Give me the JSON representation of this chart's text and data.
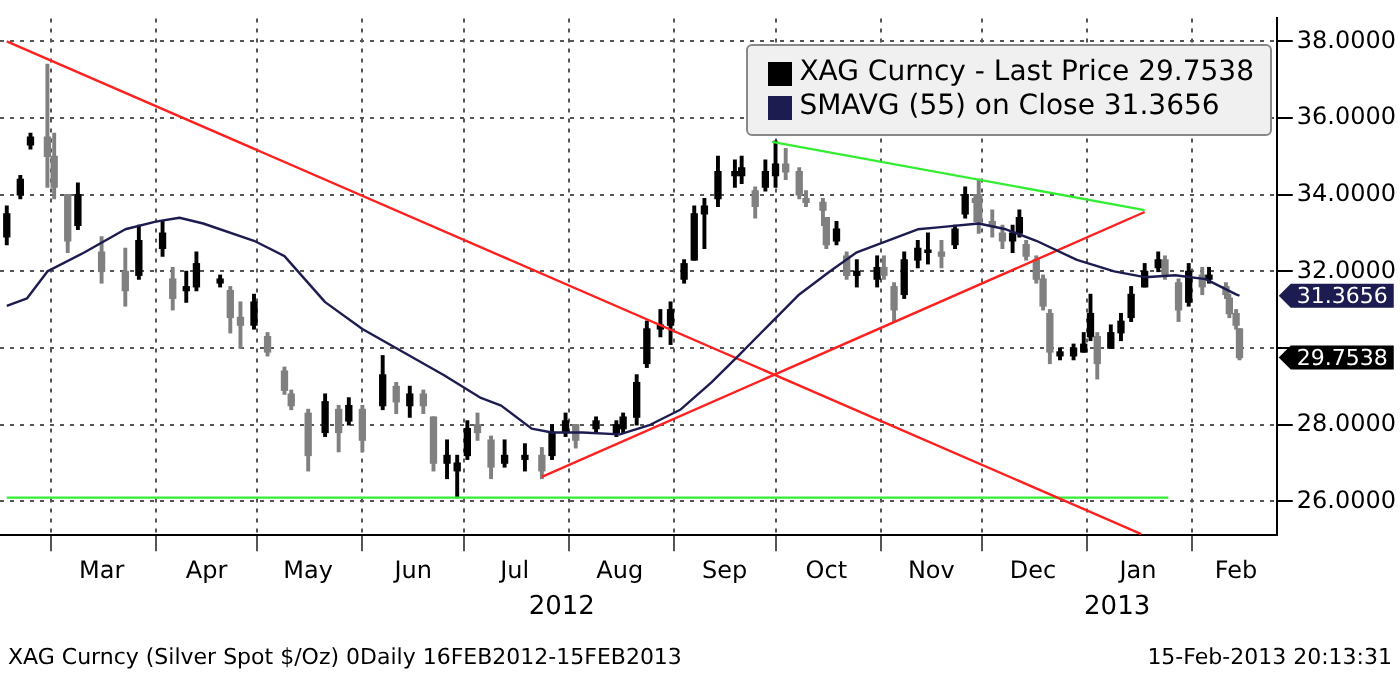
{
  "chart_data": {
    "type": "candlestick",
    "xlim": [
      "2012-02-15",
      "2013-02-26"
    ],
    "ylim": [
      25.12,
      38.6
    ],
    "xticks": [
      {
        "value": "2012-03-01",
        "label": null
      },
      {
        "value": "2012-03-16",
        "label": "Mar"
      },
      {
        "value": "2012-04-01",
        "label": null
      },
      {
        "value": "2012-04-16",
        "label": "Apr"
      },
      {
        "value": "2012-05-01",
        "label": null
      },
      {
        "value": "2012-05-16",
        "label": "May"
      },
      {
        "value": "2012-06-01",
        "label": null
      },
      {
        "value": "2012-06-16",
        "label": "Jun"
      },
      {
        "value": "2012-07-01",
        "label": null
      },
      {
        "value": "2012-07-16",
        "label": "Jul"
      },
      {
        "value": "2012-08-01",
        "label": null
      },
      {
        "value": "2012-08-16",
        "label": "Aug"
      },
      {
        "value": "2012-09-01",
        "label": null
      },
      {
        "value": "2012-09-16",
        "label": "Sep"
      },
      {
        "value": "2012-10-01",
        "label": null
      },
      {
        "value": "2012-10-16",
        "label": "Oct"
      },
      {
        "value": "2012-11-01",
        "label": null
      },
      {
        "value": "2012-11-16",
        "label": "Nov"
      },
      {
        "value": "2012-12-01",
        "label": null
      },
      {
        "value": "2012-12-16",
        "label": "Dec"
      },
      {
        "value": "2013-01-01",
        "label": null
      },
      {
        "value": "2013-01-16",
        "label": "Jan"
      },
      {
        "value": "2013-02-01",
        "label": null
      },
      {
        "value": "2013-02-14",
        "label": "Feb"
      }
    ],
    "yticks": [
      {
        "value": 26,
        "label": "26.0000"
      },
      {
        "value": 28,
        "label": "28.0000"
      },
      {
        "value": 30,
        "label": null
      },
      {
        "value": 32,
        "label": "32.0000"
      },
      {
        "value": 34,
        "label": "34.0000"
      },
      {
        "value": 36,
        "label": "36.0000"
      },
      {
        "value": 38,
        "label": "38.0000"
      }
    ],
    "grid": true,
    "legend": "top right",
    "marker": "none",
    "series": [
      {
        "name": "XAG Curncy - Last Price 29.7538",
        "color": "#000000",
        "colors": [
          "#000000",
          "#000000",
          "#000000",
          "#808080",
          "#808080",
          "#808080",
          "#000000",
          "#808080",
          "#808080",
          "#000000",
          "#000000",
          "#808080",
          "#000000",
          "#000000",
          "#000000",
          "#808080",
          "#808080",
          "#000000",
          "#808080",
          "#808080",
          "#808080",
          "#808080",
          "#000000",
          "#808080",
          "#000000",
          "#808080",
          "#000000",
          "#808080",
          "#000000",
          "#808080",
          "#808080",
          "#000000",
          "#000000",
          "#000000",
          "#808080",
          "#808080",
          "#000000",
          "#000000",
          "#808080",
          "#000000",
          "#000000",
          "#808080",
          "#000000",
          "#000000",
          "#000000",
          "#000000",
          "#000000",
          "#000000",
          "#000000",
          "#000000",
          "#000000",
          "#000000",
          "#000000",
          "#000000",
          "#000000",
          "#808080",
          "#000000",
          "#000000",
          "#808080",
          "#808080",
          "#808080",
          "#808080",
          "#808080",
          "#000000",
          "#808080",
          "#000000",
          "#000000",
          "#808080",
          "#808080",
          "#000000",
          "#000000",
          "#000000",
          "#808080",
          "#000000",
          "#000000",
          "#808080",
          "#808080",
          "#808080",
          "#808080",
          "#000000",
          "#000000",
          "#808080",
          "#808080",
          "#808080",
          "#808080",
          "#000000",
          "#000000",
          "#000000",
          "#000000",
          "#808080",
          "#000000",
          "#000000",
          "#000000",
          "#000000",
          "#000000",
          "#808080",
          "#808080",
          "#000000",
          "#808080",
          "#000000",
          "#808080",
          "#808080",
          "#808080",
          "#808080"
        ],
        "x": [
          "2012-02-17",
          "2012-02-21",
          "2012-02-24",
          "2012-02-29",
          "2012-03-02",
          "2012-03-06",
          "2012-03-09",
          "2012-03-16",
          "2012-03-23",
          "2012-03-27",
          "2012-04-03",
          "2012-04-06",
          "2012-04-10",
          "2012-04-13",
          "2012-04-20",
          "2012-04-23",
          "2012-04-26",
          "2012-04-30",
          "2012-05-04",
          "2012-05-09",
          "2012-05-11",
          "2012-05-16",
          "2012-05-21",
          "2012-05-25",
          "2012-05-28",
          "2012-06-01",
          "2012-06-07",
          "2012-06-11",
          "2012-06-15",
          "2012-06-19",
          "2012-06-22",
          "2012-06-26",
          "2012-06-29",
          "2012-07-02",
          "2012-07-05",
          "2012-07-09",
          "2012-07-13",
          "2012-07-19",
          "2012-07-24",
          "2012-07-27",
          "2012-07-31",
          "2012-08-03",
          "2012-08-09",
          "2012-08-15",
          "2012-08-17",
          "2012-08-21",
          "2012-08-24",
          "2012-08-28",
          "2012-08-31",
          "2012-09-04",
          "2012-09-07",
          "2012-09-10",
          "2012-09-14",
          "2012-09-19",
          "2012-09-21",
          "2012-09-25",
          "2012-09-28",
          "2012-10-01",
          "2012-10-04",
          "2012-10-08",
          "2012-10-10",
          "2012-10-15",
          "2012-10-16",
          "2012-10-19",
          "2012-10-22",
          "2012-10-25",
          "2012-10-31",
          "2012-11-02",
          "2012-11-05",
          "2012-11-08",
          "2012-11-12",
          "2012-11-15",
          "2012-11-19",
          "2012-11-23",
          "2012-11-26",
          "2012-11-29",
          "2012-11-30",
          "2012-12-04",
          "2012-12-07",
          "2012-12-10",
          "2012-12-12",
          "2012-12-14",
          "2012-12-17",
          "2012-12-19",
          "2012-12-21",
          "2012-12-24",
          "2012-12-28",
          "2012-12-31",
          "2013-01-02",
          "2013-01-04",
          "2013-01-08",
          "2013-01-11",
          "2013-01-14",
          "2013-01-18",
          "2013-01-22",
          "2013-01-24",
          "2013-01-28",
          "2013-01-31",
          "2013-02-04",
          "2013-02-06",
          "2013-02-11",
          "2013-02-12",
          "2013-02-14",
          "2013-02-15"
        ],
        "ohlc": [
          [
            32.9,
            33.7,
            32.7,
            33.5
          ],
          [
            34.0,
            34.5,
            33.9,
            34.4
          ],
          [
            35.3,
            35.6,
            35.2,
            35.5
          ],
          [
            35.5,
            37.4,
            34.2,
            35.0
          ],
          [
            35.0,
            35.6,
            33.9,
            34.2
          ],
          [
            34.0,
            34.0,
            32.5,
            32.8
          ],
          [
            33.2,
            34.3,
            33.1,
            34.0
          ],
          [
            32.5,
            32.9,
            31.7,
            32.0
          ],
          [
            32.0,
            32.6,
            31.1,
            31.5
          ],
          [
            31.9,
            33.2,
            31.8,
            32.8
          ],
          [
            32.6,
            33.3,
            32.4,
            33.0
          ],
          [
            31.8,
            32.1,
            31.0,
            31.3
          ],
          [
            31.5,
            32.0,
            31.2,
            31.6
          ],
          [
            31.6,
            32.5,
            31.5,
            32.2
          ],
          [
            31.7,
            31.9,
            31.6,
            31.8
          ],
          [
            31.5,
            31.6,
            30.4,
            30.8
          ],
          [
            30.8,
            31.2,
            30.0,
            30.6
          ],
          [
            30.6,
            31.4,
            30.5,
            31.2
          ],
          [
            30.3,
            30.4,
            29.8,
            29.9
          ],
          [
            29.4,
            29.5,
            28.8,
            28.9
          ],
          [
            28.8,
            28.9,
            28.4,
            28.5
          ],
          [
            28.3,
            28.4,
            26.8,
            27.2
          ],
          [
            27.8,
            28.8,
            27.7,
            28.6
          ],
          [
            28.4,
            28.5,
            27.3,
            27.8
          ],
          [
            28.1,
            28.7,
            28.0,
            28.5
          ],
          [
            28.4,
            28.5,
            27.3,
            27.6
          ],
          [
            28.5,
            29.8,
            28.4,
            29.3
          ],
          [
            29.0,
            29.1,
            28.3,
            28.6
          ],
          [
            28.5,
            29.0,
            28.2,
            28.8
          ],
          [
            28.8,
            28.9,
            28.3,
            28.5
          ],
          [
            28.2,
            28.2,
            26.8,
            27.0
          ],
          [
            27.0,
            27.6,
            26.6,
            27.2
          ],
          [
            26.8,
            27.2,
            26.1,
            27.0
          ],
          [
            27.2,
            28.1,
            27.1,
            27.9
          ],
          [
            28.0,
            28.3,
            27.6,
            27.8
          ],
          [
            27.6,
            27.7,
            26.6,
            26.9
          ],
          [
            27.0,
            27.6,
            26.9,
            27.2
          ],
          [
            27.1,
            27.5,
            26.8,
            27.2
          ],
          [
            27.2,
            27.4,
            26.6,
            26.8
          ],
          [
            27.2,
            28.0,
            27.1,
            27.8
          ],
          [
            27.8,
            28.3,
            27.7,
            28.1
          ],
          [
            28.0,
            28.0,
            27.4,
            27.6
          ],
          [
            27.9,
            28.2,
            27.8,
            28.1
          ],
          [
            27.8,
            28.1,
            27.7,
            28.0
          ],
          [
            27.9,
            28.3,
            27.8,
            28.2
          ],
          [
            28.2,
            29.3,
            28.0,
            29.1
          ],
          [
            29.6,
            30.7,
            29.5,
            30.5
          ],
          [
            30.5,
            31.0,
            30.3,
            30.6
          ],
          [
            30.6,
            31.2,
            30.1,
            31.0
          ],
          [
            31.8,
            32.3,
            31.7,
            32.2
          ],
          [
            32.3,
            33.7,
            32.3,
            33.5
          ],
          [
            33.5,
            33.9,
            32.6,
            33.7
          ],
          [
            33.9,
            35.0,
            33.7,
            34.6
          ],
          [
            34.5,
            34.9,
            34.2,
            34.6
          ],
          [
            34.5,
            35.0,
            34.3,
            34.7
          ],
          [
            34.1,
            34.2,
            33.4,
            33.7
          ],
          [
            34.2,
            34.9,
            34.1,
            34.6
          ],
          [
            34.5,
            35.4,
            34.2,
            34.8
          ],
          [
            34.8,
            35.2,
            34.4,
            34.6
          ],
          [
            34.6,
            34.7,
            33.9,
            34.0
          ],
          [
            33.9,
            34.1,
            33.7,
            33.8
          ],
          [
            33.8,
            33.9,
            33.2,
            33.6
          ],
          [
            33.4,
            33.4,
            32.6,
            32.7
          ],
          [
            32.8,
            33.3,
            32.7,
            33.1
          ],
          [
            32.4,
            32.5,
            31.8,
            31.9
          ],
          [
            31.9,
            32.3,
            31.6,
            32.0
          ],
          [
            31.8,
            32.4,
            31.6,
            32.1
          ],
          [
            32.1,
            32.4,
            31.8,
            31.9
          ],
          [
            31.6,
            31.7,
            30.7,
            31.0
          ],
          [
            31.4,
            32.5,
            31.3,
            32.3
          ],
          [
            32.3,
            32.8,
            32.1,
            32.6
          ],
          [
            32.5,
            33.0,
            32.2,
            32.5
          ],
          [
            32.5,
            32.8,
            32.1,
            32.4
          ],
          [
            32.7,
            33.2,
            32.6,
            33.1
          ],
          [
            33.5,
            34.2,
            33.4,
            34.0
          ],
          [
            33.9,
            34.0,
            33.3,
            33.8
          ],
          [
            34.0,
            34.4,
            33.0,
            33.3
          ],
          [
            33.3,
            33.6,
            32.9,
            33.2
          ],
          [
            33.0,
            33.2,
            32.6,
            32.8
          ],
          [
            32.8,
            33.2,
            32.5,
            33.0
          ],
          [
            33.0,
            33.6,
            32.9,
            33.4
          ],
          [
            32.7,
            32.8,
            32.3,
            32.4
          ],
          [
            32.3,
            32.4,
            31.7,
            31.8
          ],
          [
            31.8,
            31.9,
            31.0,
            31.1
          ],
          [
            30.9,
            31.0,
            29.6,
            29.9
          ],
          [
            29.8,
            30.0,
            29.7,
            29.9
          ],
          [
            29.8,
            30.1,
            29.7,
            30.0
          ],
          [
            29.9,
            30.4,
            29.9,
            30.1
          ],
          [
            30.3,
            31.4,
            30.2,
            30.9
          ],
          [
            30.3,
            30.4,
            29.2,
            29.6
          ],
          [
            30.0,
            30.6,
            30.0,
            30.4
          ],
          [
            30.4,
            30.9,
            30.2,
            30.7
          ],
          [
            30.8,
            31.6,
            30.7,
            31.4
          ],
          [
            31.6,
            32.2,
            31.6,
            32.0
          ],
          [
            32.1,
            32.5,
            32.0,
            32.3
          ],
          [
            32.3,
            32.4,
            31.8,
            31.9
          ],
          [
            31.7,
            31.8,
            30.7,
            31.0
          ],
          [
            31.2,
            32.2,
            31.1,
            32.0
          ],
          [
            31.9,
            32.1,
            31.4,
            31.6
          ],
          [
            31.8,
            32.1,
            31.7,
            31.9
          ],
          [
            31.6,
            31.7,
            31.3,
            31.4
          ],
          [
            31.3,
            31.4,
            30.8,
            30.9
          ],
          [
            30.9,
            31.0,
            30.5,
            30.6
          ],
          [
            30.5,
            30.5,
            29.7,
            29.7538
          ]
        ]
      },
      {
        "name": "SMAVG (55) on Close 31.3656",
        "type": "line",
        "color": "#1c1c50",
        "x": [
          "2012-02-17",
          "2012-02-23",
          "2012-02-29",
          "2012-03-11",
          "2012-03-23",
          "2012-04-01",
          "2012-04-08",
          "2012-04-15",
          "2012-04-30",
          "2012-05-09",
          "2012-05-15",
          "2012-05-21",
          "2012-06-01",
          "2012-06-13",
          "2012-06-25",
          "2012-07-06",
          "2012-07-12",
          "2012-07-21",
          "2012-07-27",
          "2012-08-05",
          "2012-08-16",
          "2012-08-25",
          "2012-09-03",
          "2012-09-12",
          "2012-09-20",
          "2012-09-29",
          "2012-10-08",
          "2012-10-17",
          "2012-10-25",
          "2012-11-03",
          "2012-11-12",
          "2012-11-18",
          "2012-11-30",
          "2012-12-08",
          "2012-12-17",
          "2012-12-29",
          "2013-01-09",
          "2013-01-18",
          "2013-01-27",
          "2013-02-05",
          "2013-02-14",
          "2013-02-15"
        ],
        "values": [
          31.1,
          31.3,
          32.0,
          32.5,
          33.1,
          33.3,
          33.4,
          33.25,
          32.8,
          32.4,
          31.8,
          31.2,
          30.5,
          29.9,
          29.3,
          28.7,
          28.5,
          27.9,
          27.8,
          27.8,
          27.75,
          28.0,
          28.4,
          29.1,
          29.8,
          30.6,
          31.4,
          32.0,
          32.5,
          32.8,
          33.1,
          33.15,
          33.25,
          33.1,
          32.8,
          32.3,
          32.0,
          31.85,
          31.9,
          31.8,
          31.4,
          31.3656
        ]
      },
      {
        "type": "line",
        "color": "#ff2020",
        "x": [
          "2012-02-17",
          "2013-01-17"
        ],
        "values": [
          38.0,
          25.15
        ]
      },
      {
        "type": "line",
        "color": "#ff2020",
        "x": [
          "2012-07-24",
          "2013-01-18"
        ],
        "values": [
          26.64,
          33.55
        ]
      },
      {
        "type": "line",
        "color": "#33ee33",
        "x": [
          "2012-09-30",
          "2013-01-18"
        ],
        "values": [
          35.38,
          33.6
        ]
      },
      {
        "type": "line",
        "color": "#33ee33",
        "x": [
          "2012-02-17",
          "2013-01-25"
        ],
        "values": [
          26.1,
          26.1
        ]
      }
    ],
    "annotations": [
      "XAG Curncy (Silver Spot  $/Oz) 0Daily 16FEB2012-15FEB2013",
      "15-Feb-2013 20:13:31",
      "2012",
      "2013",
      "29.7538",
      "31.3656"
    ]
  }
}
